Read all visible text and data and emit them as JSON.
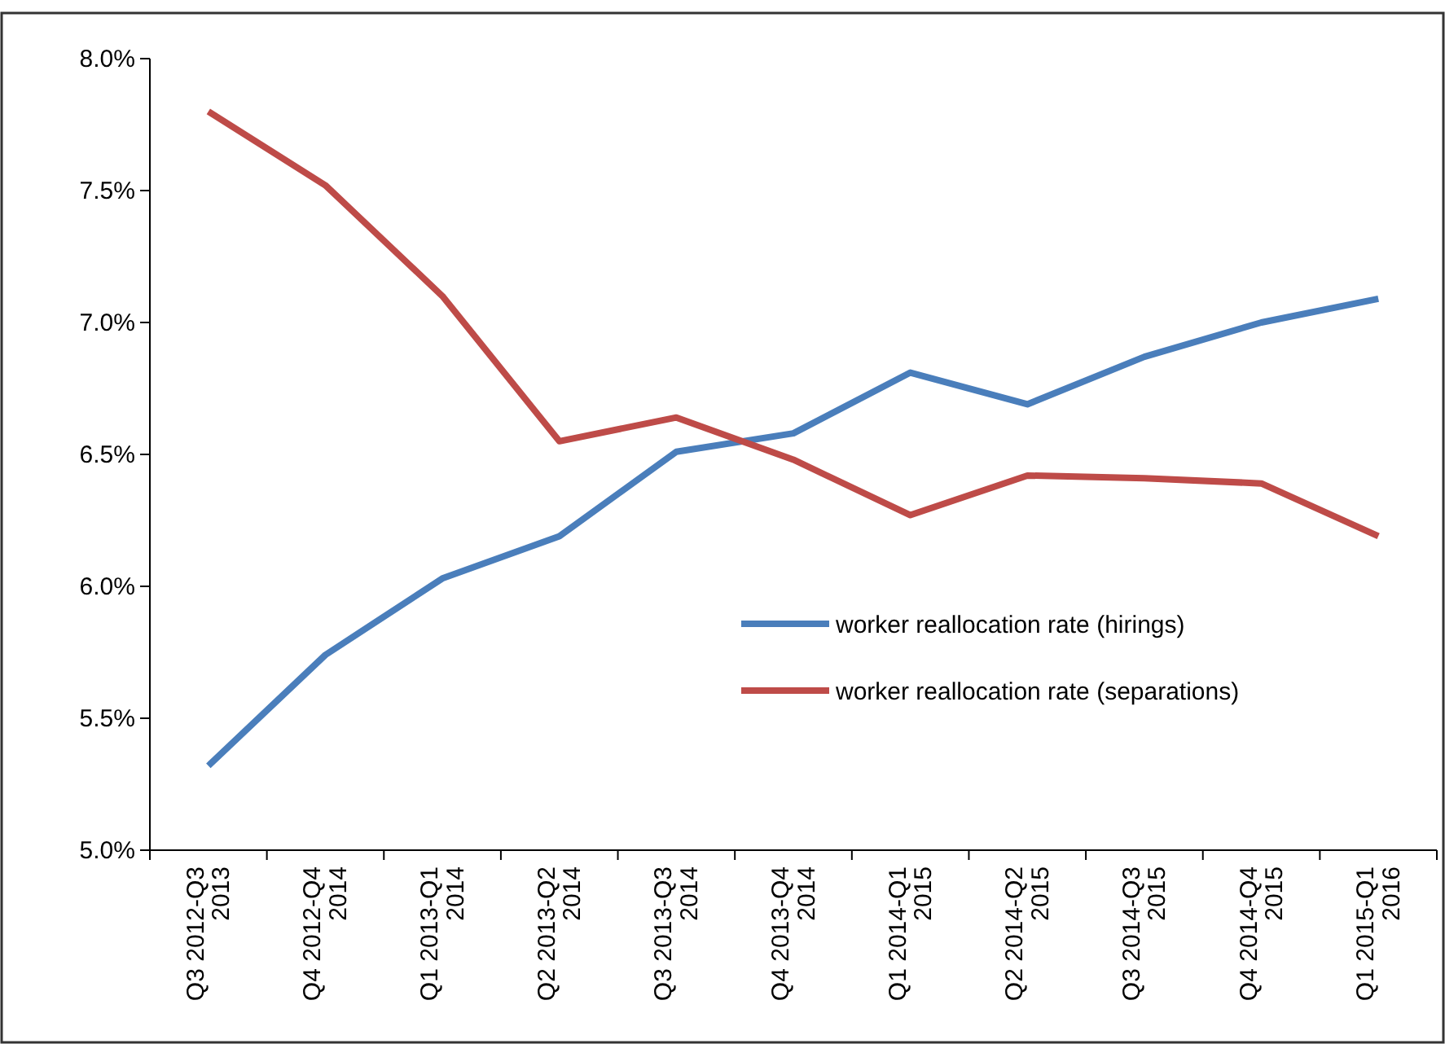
{
  "chart_data": {
    "type": "line",
    "categories": [
      "Q3 2012-Q3 2013",
      "Q4 2012-Q4 2014",
      "Q1 2013-Q1 2014",
      "Q2 2013-Q2 2014",
      "Q3 2013-Q3 2014",
      "Q4 2013-Q4 2014",
      "Q1 2014-Q1 2015",
      "Q2 2014-Q2 2015",
      "Q3 2014-Q3 2015",
      "Q4 2014-Q4 2015",
      "Q1 2015-Q1 2016"
    ],
    "series": [
      {
        "name": "worker reallocation rate (hirings)",
        "color": "#4a7ebb",
        "values": [
          5.32,
          5.74,
          6.03,
          6.19,
          6.51,
          6.58,
          6.81,
          6.69,
          6.87,
          7.0,
          7.09
        ]
      },
      {
        "name": "worker reallocation rate (separations)",
        "color": "#be4b48",
        "values": [
          7.8,
          7.52,
          7.1,
          6.55,
          6.64,
          6.48,
          6.27,
          6.42,
          6.41,
          6.39,
          6.19
        ]
      }
    ],
    "ylim": [
      5,
      8
    ],
    "yticks": [
      {
        "value": 5,
        "label": "5.0%"
      },
      {
        "value": 5.5,
        "label": "5.5%"
      },
      {
        "value": 6,
        "label": "6.0%"
      },
      {
        "value": 6.5,
        "label": "6.5%"
      },
      {
        "value": 7,
        "label": "7.0%"
      },
      {
        "value": 7.5,
        "label": "7.5%"
      },
      {
        "value": 8,
        "label": "8.0%"
      }
    ],
    "grid": false,
    "legend": "right",
    "marker": "none",
    "line_style": "solid"
  }
}
